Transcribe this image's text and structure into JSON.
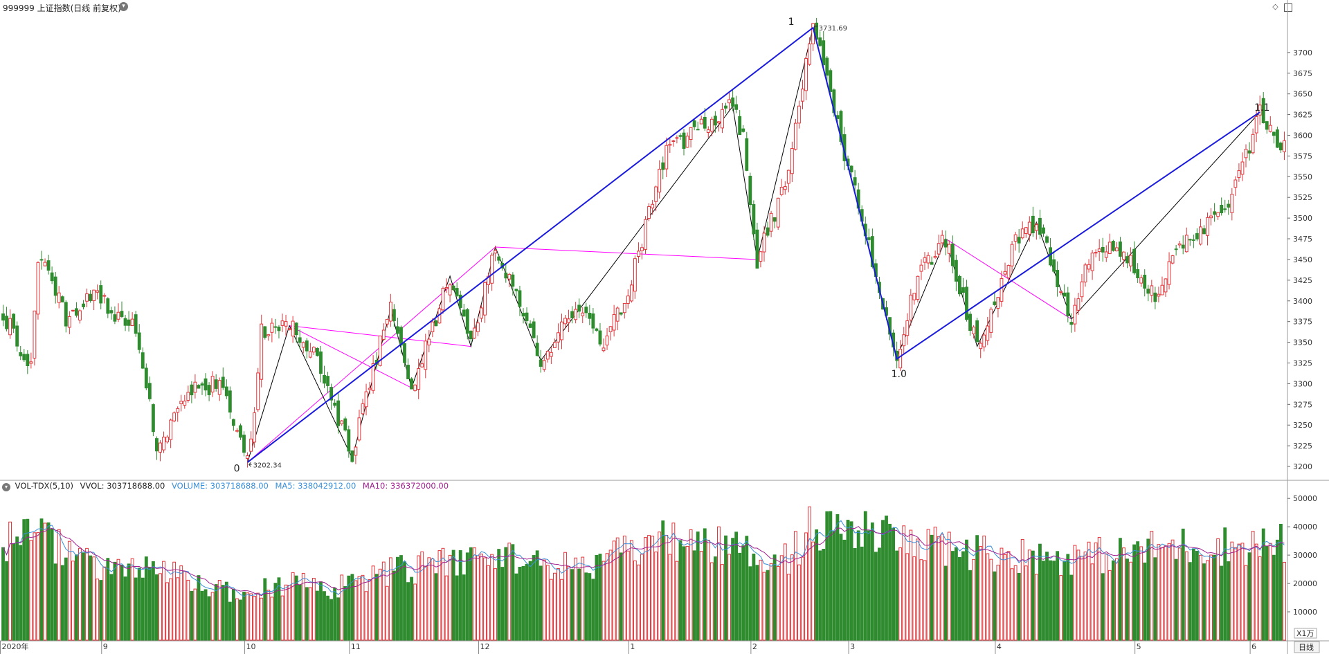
{
  "header": {
    "title": "999999 上证指数(日线 前复权)",
    "icons": [
      "chevron-down-icon",
      "diamond-icon",
      "panel-toggle-icon"
    ]
  },
  "volume_header": {
    "indicator": "VOL-TDX(5,10)",
    "vvol": "VVOL: 303718688.00",
    "volume": "VOLUME: 303718688.00",
    "ma5": "MA5: 338042912.00",
    "ma10": "MA10: 336372000.00"
  },
  "colors": {
    "up": "#e0353a",
    "down": "#2e8b2e",
    "ma5": "#3a8fd9",
    "ma10": "#a0208f",
    "trend_blue": "#1a1adc",
    "fib_magenta": "#ff00ff",
    "zigzag": "#000000"
  },
  "chart_data": {
    "type": "candlestick",
    "price_axis": {
      "ylim": [
        3185,
        3745
      ],
      "ticks": [
        3200,
        3225,
        3250,
        3275,
        3300,
        3325,
        3350,
        3375,
        3400,
        3425,
        3450,
        3475,
        3500,
        3525,
        3550,
        3575,
        3600,
        3625,
        3650,
        3675,
        3700
      ]
    },
    "volume_axis": {
      "ylim": [
        0,
        52000
      ],
      "ticks": [
        10000,
        20000,
        30000,
        40000,
        50000
      ],
      "unit_label": "X1万"
    },
    "time_axis": {
      "labels": [
        "2020年",
        "9",
        "10",
        "11",
        "12",
        "1",
        "2",
        "3",
        "4",
        "5",
        "6"
      ],
      "label_bars": [
        0,
        29,
        70,
        100,
        137,
        180,
        215,
        243,
        285,
        325,
        358
      ],
      "period_label": "日线"
    },
    "annotations": [
      {
        "text": "0",
        "bar": 70,
        "price": 3202.34
      },
      {
        "text": "3202.34",
        "bar": 70,
        "price": 3202.34
      },
      {
        "text": "1",
        "bar": 232,
        "price": 3731.69
      },
      {
        "text": "3731.69",
        "bar": 232,
        "price": 3731.69
      },
      {
        "text": "1.0",
        "bar": 256,
        "price": 3328
      },
      {
        "text": "1.1",
        "bar": 360,
        "price": 3628
      }
    ],
    "trend_lines": [
      {
        "color": "trend_blue",
        "points": [
          [
            70,
            3205
          ],
          [
            232,
            3730
          ],
          [
            256,
            3330
          ],
          [
            360,
            3628
          ]
        ]
      }
    ],
    "zigzag": [
      [
        70,
        3205
      ],
      [
        82,
        3370
      ],
      [
        100,
        3210
      ],
      [
        111,
        3390
      ],
      [
        117,
        3295
      ],
      [
        128,
        3430
      ],
      [
        134,
        3345
      ],
      [
        141,
        3465
      ],
      [
        154,
        3328
      ],
      [
        209,
        3635
      ],
      [
        216,
        3450
      ],
      [
        232,
        3730
      ],
      [
        256,
        3332
      ],
      [
        270,
        3475
      ],
      [
        279,
        3345
      ],
      [
        296,
        3495
      ],
      [
        306,
        3378
      ],
      [
        360,
        3628
      ]
    ],
    "fib_lines": [
      [
        [
          70,
          3205
        ],
        [
          141,
          3465
        ]
      ],
      [
        [
          82,
          3370
        ],
        [
          117,
          3295
        ]
      ],
      [
        [
          82,
          3370
        ],
        [
          134,
          3345
        ]
      ],
      [
        [
          141,
          3465
        ],
        [
          216,
          3450
        ]
      ],
      [
        [
          270,
          3475
        ],
        [
          306,
          3378
        ]
      ]
    ],
    "seed": 20210218,
    "waypoints": [
      [
        0,
        3385
      ],
      [
        8,
        3320
      ],
      [
        10,
        3455
      ],
      [
        18,
        3380
      ],
      [
        25,
        3410
      ],
      [
        38,
        3365
      ],
      [
        44,
        3225
      ],
      [
        55,
        3295
      ],
      [
        63,
        3300
      ],
      [
        70,
        3205
      ],
      [
        72,
        3260
      ],
      [
        74,
        3365
      ],
      [
        82,
        3370
      ],
      [
        90,
        3330
      ],
      [
        100,
        3210
      ],
      [
        104,
        3290
      ],
      [
        111,
        3390
      ],
      [
        117,
        3295
      ],
      [
        128,
        3430
      ],
      [
        134,
        3345
      ],
      [
        141,
        3465
      ],
      [
        154,
        3328
      ],
      [
        165,
        3395
      ],
      [
        172,
        3350
      ],
      [
        178,
        3400
      ],
      [
        182,
        3460
      ],
      [
        190,
        3580
      ],
      [
        195,
        3595
      ],
      [
        209,
        3635
      ],
      [
        212,
        3600
      ],
      [
        216,
        3450
      ],
      [
        224,
        3540
      ],
      [
        232,
        3730
      ],
      [
        236,
        3675
      ],
      [
        240,
        3595
      ],
      [
        246,
        3500
      ],
      [
        256,
        3332
      ],
      [
        262,
        3430
      ],
      [
        270,
        3475
      ],
      [
        279,
        3345
      ],
      [
        290,
        3470
      ],
      [
        296,
        3495
      ],
      [
        306,
        3378
      ],
      [
        312,
        3460
      ],
      [
        320,
        3460
      ],
      [
        330,
        3410
      ],
      [
        340,
        3480
      ],
      [
        348,
        3500
      ],
      [
        352,
        3525
      ],
      [
        358,
        3600
      ],
      [
        360,
        3628
      ],
      [
        366,
        3580
      ],
      [
        367,
        3598
      ]
    ],
    "vol_waypoints": [
      [
        0,
        35000
      ],
      [
        12,
        36000
      ],
      [
        25,
        26000
      ],
      [
        45,
        24000
      ],
      [
        60,
        18000
      ],
      [
        70,
        16000
      ],
      [
        80,
        20000
      ],
      [
        95,
        18000
      ],
      [
        110,
        24000
      ],
      [
        130,
        27000
      ],
      [
        140,
        31000
      ],
      [
        150,
        28000
      ],
      [
        162,
        25000
      ],
      [
        175,
        29000
      ],
      [
        190,
        35000
      ],
      [
        205,
        33000
      ],
      [
        215,
        30000
      ],
      [
        225,
        29000
      ],
      [
        232,
        40000
      ],
      [
        240,
        38000
      ],
      [
        250,
        37000
      ],
      [
        262,
        33000
      ],
      [
        280,
        31000
      ],
      [
        300,
        29000
      ],
      [
        320,
        30000
      ],
      [
        335,
        33000
      ],
      [
        350,
        33000
      ],
      [
        367,
        34000
      ]
    ]
  }
}
